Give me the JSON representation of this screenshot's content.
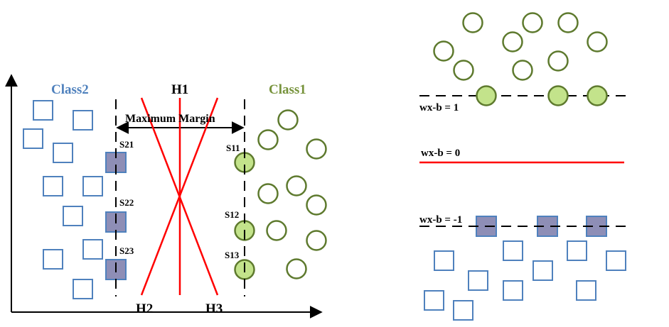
{
  "left_panel": {
    "class2_label": "Class2",
    "class1_label": "Class1",
    "h1_label": "H1",
    "h2_label": "H2",
    "h3_label": "H3",
    "margin_label": "Maximum Margin",
    "support_vectors": {
      "s21": "S21",
      "s22": "S22",
      "s23": "S23",
      "s11": "S11",
      "s12": "S12",
      "s13": "S13"
    }
  },
  "right_panel": {
    "upper_margin_label": "wx-b = 1",
    "hyperplane_label": "wx-b = 0",
    "lower_margin_label": "wx-b = -1"
  },
  "colors": {
    "square_stroke": "#4f81bd",
    "circle_stroke": "#5e7a2e",
    "support_square_fill": "#8e8eb6",
    "support_circle_fill": "#c3e38b",
    "hyperplane": "#ff0000",
    "class2_text": "#4f81bd",
    "class1_text": "#77933c"
  }
}
